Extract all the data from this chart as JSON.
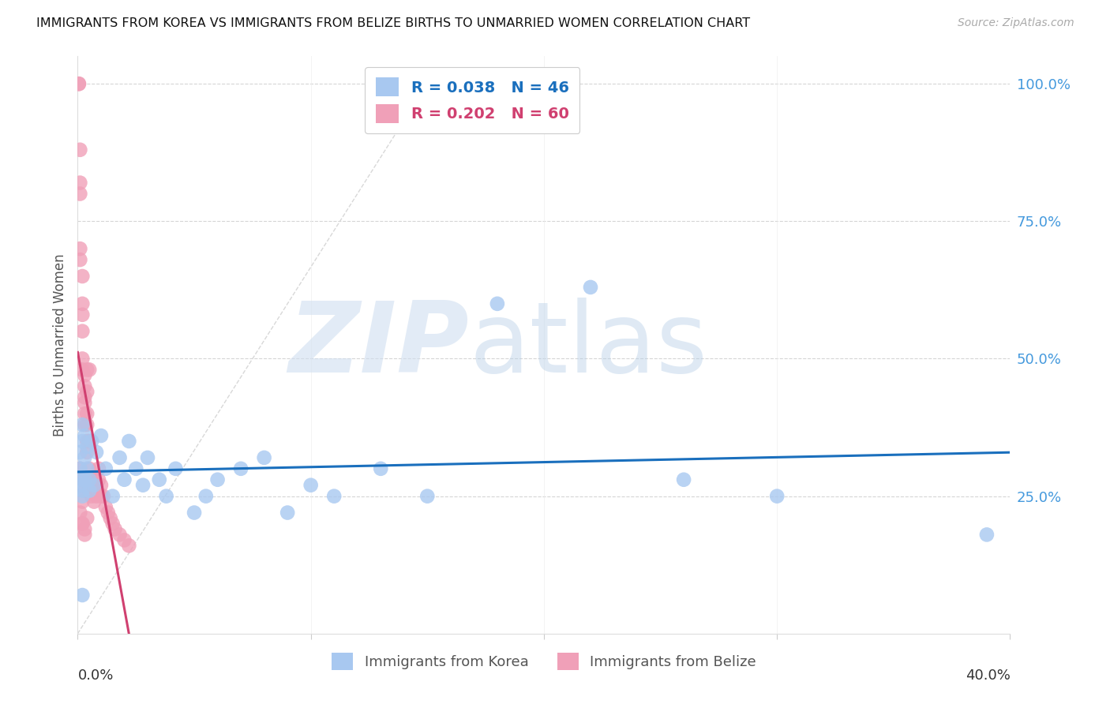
{
  "title": "IMMIGRANTS FROM KOREA VS IMMIGRANTS FROM BELIZE BIRTHS TO UNMARRIED WOMEN CORRELATION CHART",
  "source": "Source: ZipAtlas.com",
  "ylabel": "Births to Unmarried Women",
  "ytick_labels": [
    "100.0%",
    "75.0%",
    "50.0%",
    "25.0%"
  ],
  "ytick_values": [
    1.0,
    0.75,
    0.5,
    0.25
  ],
  "korea_R": "0.038",
  "korea_N": "46",
  "belize_R": "0.202",
  "belize_N": "60",
  "korea_color": "#a8c8f0",
  "belize_color": "#f0a0b8",
  "korea_line_color": "#1a6fbd",
  "belize_line_color": "#d04070",
  "diagonal_color": "#d8d8d8",
  "watermark_zip": "ZIP",
  "watermark_atlas": "atlas",
  "xlim": [
    0.0,
    0.4
  ],
  "ylim": [
    0.0,
    1.05
  ],
  "korea_x": [
    0.001,
    0.001,
    0.001,
    0.002,
    0.002,
    0.002,
    0.002,
    0.002,
    0.003,
    0.003,
    0.003,
    0.004,
    0.004,
    0.005,
    0.005,
    0.006,
    0.007,
    0.008,
    0.01,
    0.012,
    0.015,
    0.018,
    0.02,
    0.022,
    0.025,
    0.028,
    0.03,
    0.035,
    0.038,
    0.042,
    0.05,
    0.055,
    0.06,
    0.07,
    0.08,
    0.09,
    0.1,
    0.11,
    0.13,
    0.15,
    0.18,
    0.22,
    0.26,
    0.3,
    0.39,
    0.002
  ],
  "korea_y": [
    0.27,
    0.3,
    0.33,
    0.26,
    0.28,
    0.35,
    0.38,
    0.25,
    0.32,
    0.36,
    0.28,
    0.3,
    0.34,
    0.26,
    0.28,
    0.35,
    0.27,
    0.33,
    0.36,
    0.3,
    0.25,
    0.32,
    0.28,
    0.35,
    0.3,
    0.27,
    0.32,
    0.28,
    0.25,
    0.3,
    0.22,
    0.25,
    0.28,
    0.3,
    0.32,
    0.22,
    0.27,
    0.25,
    0.3,
    0.25,
    0.6,
    0.63,
    0.28,
    0.25,
    0.18,
    0.07
  ],
  "belize_x": [
    0.0005,
    0.0005,
    0.001,
    0.001,
    0.001,
    0.001,
    0.001,
    0.002,
    0.002,
    0.002,
    0.002,
    0.002,
    0.002,
    0.003,
    0.003,
    0.003,
    0.003,
    0.003,
    0.003,
    0.004,
    0.004,
    0.004,
    0.004,
    0.004,
    0.004,
    0.005,
    0.005,
    0.005,
    0.005,
    0.006,
    0.006,
    0.006,
    0.007,
    0.007,
    0.007,
    0.008,
    0.008,
    0.009,
    0.009,
    0.01,
    0.01,
    0.011,
    0.012,
    0.013,
    0.014,
    0.015,
    0.016,
    0.018,
    0.02,
    0.022,
    0.001,
    0.002,
    0.003,
    0.002,
    0.001,
    0.002,
    0.003,
    0.004,
    0.002,
    0.003
  ],
  "belize_y": [
    1.0,
    1.0,
    0.88,
    0.82,
    0.8,
    0.7,
    0.68,
    0.65,
    0.6,
    0.58,
    0.55,
    0.5,
    0.48,
    0.47,
    0.45,
    0.43,
    0.4,
    0.38,
    0.42,
    0.48,
    0.44,
    0.4,
    0.38,
    0.35,
    0.33,
    0.35,
    0.3,
    0.28,
    0.48,
    0.27,
    0.26,
    0.25,
    0.28,
    0.26,
    0.24,
    0.27,
    0.25,
    0.3,
    0.28,
    0.27,
    0.25,
    0.25,
    0.23,
    0.22,
    0.21,
    0.2,
    0.19,
    0.18,
    0.17,
    0.16,
    0.3,
    0.28,
    0.26,
    0.24,
    0.22,
    0.2,
    0.19,
    0.21,
    0.2,
    0.18
  ]
}
